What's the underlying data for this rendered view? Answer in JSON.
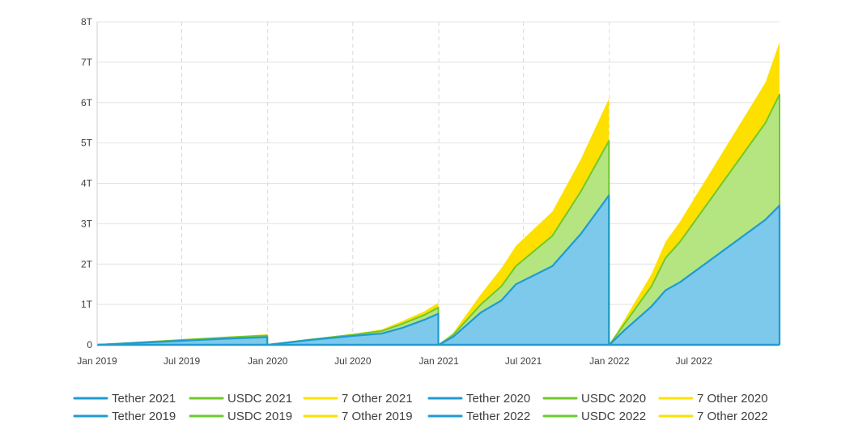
{
  "chart_data": {
    "type": "area",
    "title": "",
    "xlabel": "",
    "ylabel": "",
    "x_ticks": [
      "Jan 2019",
      "Jul 2019",
      "Jan 2020",
      "Jul 2020",
      "Jan 2021",
      "Jul 2021",
      "Jan 2022",
      "Jul 2022"
    ],
    "x_range": [
      "2019-01-01",
      "2022-12-31"
    ],
    "y_ticks": [
      "0",
      "1T",
      "2T",
      "3T",
      "4T",
      "5T",
      "6T",
      "7T",
      "8T"
    ],
    "y_range": [
      0,
      8
    ],
    "y_unit": "trillions",
    "grid": {
      "horizontal": "solid",
      "vertical": "dashed"
    },
    "stacked": true,
    "cumulative_reset": "yearly",
    "legend_position": "bottom",
    "colors": {
      "tether_fill": "#7dc9ec",
      "tether_line": "#1f9bd1",
      "usdc_fill": "#b5e580",
      "usdc_line": "#6fc92e",
      "other_fill": "#fde000",
      "other_line": "#fde000"
    },
    "legend": [
      {
        "label": "Tether 2021",
        "color": "#1f9bd1"
      },
      {
        "label": "USDC 2021",
        "color": "#6fc92e"
      },
      {
        "label": "7 Other 2021",
        "color": "#fde000"
      },
      {
        "label": "Tether 2020",
        "color": "#1f9bd1"
      },
      {
        "label": "USDC 2020",
        "color": "#6fc92e"
      },
      {
        "label": "7 Other 2020",
        "color": "#fde000"
      },
      {
        "label": "Tether 2019",
        "color": "#1f9bd1"
      },
      {
        "label": "USDC 2019",
        "color": "#6fc92e"
      },
      {
        "label": "7 Other 2019",
        "color": "#fde000"
      },
      {
        "label": "Tether 2022",
        "color": "#1f9bd1"
      },
      {
        "label": "USDC 2022",
        "color": "#6fc92e"
      },
      {
        "label": "7 Other 2022",
        "color": "#fde000"
      }
    ],
    "series": [
      {
        "name": "Tether 2019",
        "year": 2019,
        "x": [
          "2019-01-01",
          "2019-04-01",
          "2019-07-01",
          "2019-10-01",
          "2019-12-31"
        ],
        "values": [
          0,
          0.05,
          0.1,
          0.15,
          0.19
        ]
      },
      {
        "name": "USDC 2019",
        "year": 2019,
        "x": [
          "2019-01-01",
          "2019-04-01",
          "2019-07-01",
          "2019-10-01",
          "2019-12-31"
        ],
        "values": [
          0,
          0.01,
          0.02,
          0.03,
          0.04
        ]
      },
      {
        "name": "7 Other 2019",
        "year": 2019,
        "x": [
          "2019-01-01",
          "2019-04-01",
          "2019-07-01",
          "2019-10-01",
          "2019-12-31"
        ],
        "values": [
          0,
          0.01,
          0.02,
          0.02,
          0.03
        ]
      },
      {
        "name": "Tether 2020",
        "year": 2020,
        "x": [
          "2020-01-01",
          "2020-04-01",
          "2020-07-01",
          "2020-09-01",
          "2020-10-15",
          "2020-12-01",
          "2020-12-31"
        ],
        "values": [
          0,
          0.12,
          0.22,
          0.28,
          0.42,
          0.62,
          0.77
        ]
      },
      {
        "name": "USDC 2020",
        "year": 2020,
        "x": [
          "2020-01-01",
          "2020-04-01",
          "2020-07-01",
          "2020-09-01",
          "2020-10-15",
          "2020-12-01",
          "2020-12-31"
        ],
        "values": [
          0,
          0.01,
          0.03,
          0.06,
          0.1,
          0.12,
          0.15
        ]
      },
      {
        "name": "7 Other 2020",
        "year": 2020,
        "x": [
          "2020-01-01",
          "2020-04-01",
          "2020-07-01",
          "2020-09-01",
          "2020-10-15",
          "2020-12-01",
          "2020-12-31"
        ],
        "values": [
          0,
          0.01,
          0.02,
          0.04,
          0.07,
          0.09,
          0.12
        ]
      },
      {
        "name": "Tether 2021",
        "year": 2021,
        "x": [
          "2021-01-01",
          "2021-02-01",
          "2021-04-01",
          "2021-05-15",
          "2021-06-15",
          "2021-09-01",
          "2021-11-01",
          "2021-12-31"
        ],
        "values": [
          0,
          0.2,
          0.8,
          1.1,
          1.5,
          1.95,
          2.75,
          3.7
        ]
      },
      {
        "name": "USDC 2021",
        "year": 2021,
        "x": [
          "2021-01-01",
          "2021-02-01",
          "2021-04-01",
          "2021-05-15",
          "2021-06-15",
          "2021-09-01",
          "2021-11-01",
          "2021-12-31"
        ],
        "values": [
          0,
          0.05,
          0.2,
          0.35,
          0.45,
          0.75,
          1.05,
          1.35
        ]
      },
      {
        "name": "7 Other 2021",
        "year": 2021,
        "x": [
          "2021-01-01",
          "2021-02-01",
          "2021-04-01",
          "2021-05-15",
          "2021-06-15",
          "2021-09-01",
          "2021-11-01",
          "2021-12-31"
        ],
        "values": [
          0,
          0.05,
          0.25,
          0.45,
          0.5,
          0.6,
          0.8,
          1.05
        ]
      },
      {
        "name": "Tether 2022",
        "year": 2022,
        "x": [
          "2022-01-01",
          "2022-02-01",
          "2022-04-01",
          "2022-05-01",
          "2022-06-01",
          "2022-12-01",
          "2022-12-31"
        ],
        "values": [
          0,
          0.35,
          0.95,
          1.35,
          1.55,
          3.1,
          3.45
        ]
      },
      {
        "name": "USDC 2022",
        "year": 2022,
        "x": [
          "2022-01-01",
          "2022-02-01",
          "2022-04-01",
          "2022-05-01",
          "2022-06-01",
          "2022-12-01",
          "2022-12-31"
        ],
        "values": [
          0,
          0.15,
          0.5,
          0.8,
          1.0,
          2.4,
          2.75
        ]
      },
      {
        "name": "7 Other 2022",
        "year": 2022,
        "x": [
          "2022-01-01",
          "2022-02-01",
          "2022-04-01",
          "2022-05-01",
          "2022-06-01",
          "2022-12-01",
          "2022-12-31"
        ],
        "values": [
          0,
          0.1,
          0.3,
          0.4,
          0.5,
          1.0,
          1.3
        ]
      }
    ]
  }
}
